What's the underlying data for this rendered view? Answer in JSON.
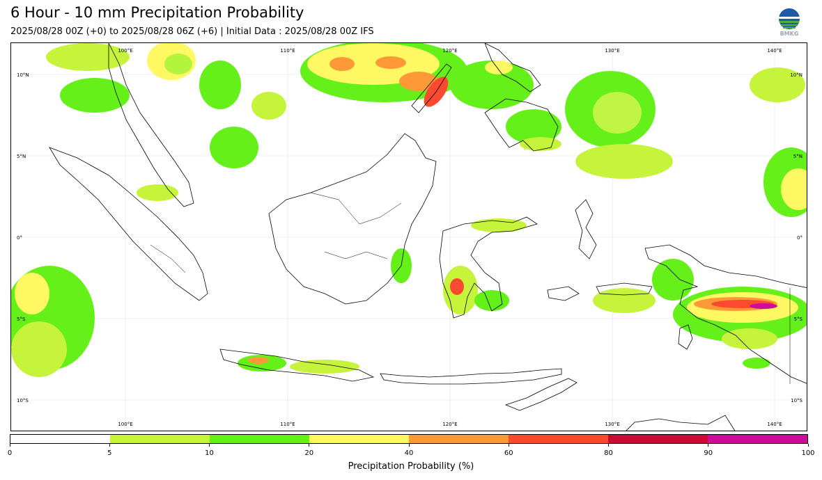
{
  "header": {
    "title": "6 Hour - 10 mm Precipitation Probability",
    "subtitle": "2025/08/28 00Z (+0) to 2025/08/28 06Z (+6) | Initial Data : 2025/08/28 00Z IFS",
    "logo_text": "BMKG"
  },
  "map": {
    "lon_labels": [
      "100°E",
      "110°E",
      "120°E",
      "130°E",
      "140°E"
    ],
    "lat_labels": [
      "10°N",
      "5°N",
      "0°",
      "5°S",
      "10°S"
    ],
    "colors": {
      "land_outline": "#000000",
      "grid": "#dddddd"
    }
  },
  "colorbar": {
    "label": "Precipitation Probability (%)",
    "ticks": [
      "0",
      "5",
      "10",
      "20",
      "40",
      "60",
      "80",
      "90",
      "100"
    ],
    "colors": [
      "#ffffff",
      "#c6f43a",
      "#66f01a",
      "#fef962",
      "#fd9a37",
      "#fb4a30",
      "#cd0a37",
      "#cc0d98"
    ]
  }
}
